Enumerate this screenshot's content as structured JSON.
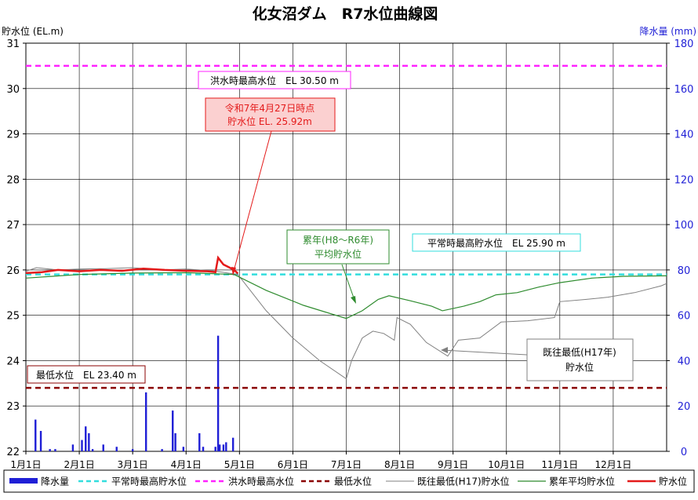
{
  "chart_data": {
    "type": "line",
    "title": "化女沼ダム　R7水位曲線図",
    "y_left_label": "貯水位 (EL.m)",
    "y_right_label": "降水量 (mm)",
    "y_left_range": [
      22,
      31
    ],
    "y_right_range": [
      0,
      180
    ],
    "y_left_ticks": [
      "22",
      "23",
      "24",
      "25",
      "26",
      "27",
      "28",
      "29",
      "30",
      "31"
    ],
    "y_right_ticks": [
      "0",
      "20",
      "40",
      "60",
      "80",
      "100",
      "120",
      "140",
      "160",
      "180"
    ],
    "x_range": [
      1,
      13
    ],
    "x_ticks": [
      "1月1日",
      "2月1日",
      "3月1日",
      "4月1日",
      "5月1日",
      "6月1日",
      "7月1日",
      "8月1日",
      "9月1日",
      "10月1日",
      "11月1日",
      "12月1日"
    ],
    "grid": true,
    "legend_position": "bottom",
    "colors": {
      "precip": "#1f1fd6",
      "normal_max": "#33dede",
      "flood_max": "#ff22ff",
      "min_level": "#8b0000",
      "record_low": "#808080",
      "avg": "#2e8b2e",
      "current": "#e41a1a",
      "right_axis": "#1f1fd6"
    },
    "reference_lines": {
      "flood_max": 30.5,
      "normal_max": 25.9,
      "min_level": 23.4
    },
    "annotations": {
      "flood_max": "洪水時最高水位　EL 30.50 m",
      "normal_max": "平常時最高貯水位　EL 25.90 m",
      "min_level": "最低水位　EL 23.40 m",
      "current_line1": "令和7年4月27日時点",
      "current_line2": "貯水位 EL. 25.92m",
      "avg_line1": "累年(H8～R6年)",
      "avg_line2": "平均貯水位",
      "low_line1": "既往最低(H17年)",
      "low_line2": "貯水位"
    },
    "legend": [
      {
        "label": "降水量",
        "key": "precip"
      },
      {
        "label": "平常時最高貯水位",
        "key": "normal_max"
      },
      {
        "label": "洪水時最高水位",
        "key": "flood_max"
      },
      {
        "label": "最低水位",
        "key": "min_level"
      },
      {
        "label": "既往最低(H17)貯水位",
        "key": "record_low"
      },
      {
        "label": "累年平均貯水位",
        "key": "avg"
      },
      {
        "label": "貯水位",
        "key": "current"
      }
    ],
    "series": {
      "current": [
        [
          1.0,
          25.93
        ],
        [
          1.3,
          25.95
        ],
        [
          1.6,
          26.0
        ],
        [
          2.0,
          25.97
        ],
        [
          2.4,
          26.0
        ],
        [
          2.8,
          25.98
        ],
        [
          3.2,
          26.03
        ],
        [
          3.6,
          26.0
        ],
        [
          4.0,
          25.98
        ],
        [
          4.4,
          25.97
        ],
        [
          4.55,
          25.95
        ],
        [
          4.6,
          26.27
        ],
        [
          4.7,
          26.12
        ],
        [
          4.8,
          26.06
        ],
        [
          4.9,
          26.0
        ],
        [
          4.97,
          25.92
        ]
      ],
      "average": [
        [
          1.0,
          25.82
        ],
        [
          1.5,
          25.86
        ],
        [
          2.0,
          25.9
        ],
        [
          3.0,
          25.93
        ],
        [
          4.0,
          25.94
        ],
        [
          4.9,
          25.9
        ],
        [
          5.5,
          25.55
        ],
        [
          6.2,
          25.22
        ],
        [
          7.0,
          24.93
        ],
        [
          7.3,
          25.1
        ],
        [
          7.6,
          25.35
        ],
        [
          7.8,
          25.43
        ],
        [
          8.2,
          25.32
        ],
        [
          8.6,
          25.2
        ],
        [
          8.8,
          25.1
        ],
        [
          9.2,
          25.2
        ],
        [
          9.5,
          25.3
        ],
        [
          9.8,
          25.45
        ],
        [
          10.2,
          25.5
        ],
        [
          10.6,
          25.62
        ],
        [
          11.0,
          25.72
        ],
        [
          11.6,
          25.82
        ],
        [
          12.2,
          25.86
        ],
        [
          13.0,
          25.87
        ]
      ],
      "record_low": [
        [
          1.0,
          25.97
        ],
        [
          1.2,
          26.05
        ],
        [
          1.6,
          26.0
        ],
        [
          2.0,
          26.02
        ],
        [
          2.5,
          26.03
        ],
        [
          3.0,
          26.05
        ],
        [
          3.5,
          26.0
        ],
        [
          4.0,
          26.02
        ],
        [
          4.5,
          25.98
        ],
        [
          4.97,
          25.9
        ],
        [
          5.5,
          25.1
        ],
        [
          6.0,
          24.5
        ],
        [
          6.5,
          24.0
        ],
        [
          7.0,
          23.6
        ],
        [
          7.1,
          24.0
        ],
        [
          7.3,
          24.5
        ],
        [
          7.5,
          24.65
        ],
        [
          7.7,
          24.6
        ],
        [
          7.9,
          24.45
        ],
        [
          7.95,
          24.95
        ],
        [
          8.2,
          24.8
        ],
        [
          8.5,
          24.4
        ],
        [
          8.9,
          24.1
        ],
        [
          9.1,
          24.45
        ],
        [
          9.5,
          24.5
        ],
        [
          9.9,
          24.85
        ],
        [
          10.4,
          24.88
        ],
        [
          10.9,
          24.95
        ],
        [
          11.0,
          25.3
        ],
        [
          11.5,
          25.35
        ],
        [
          11.9,
          25.4
        ],
        [
          12.4,
          25.5
        ],
        [
          12.9,
          25.65
        ],
        [
          13.0,
          25.7
        ]
      ],
      "precip": [
        [
          1.18,
          14
        ],
        [
          1.28,
          9
        ],
        [
          1.45,
          1
        ],
        [
          1.55,
          1
        ],
        [
          1.88,
          3
        ],
        [
          2.05,
          5
        ],
        [
          2.12,
          11
        ],
        [
          2.18,
          8
        ],
        [
          2.25,
          1
        ],
        [
          2.45,
          3
        ],
        [
          2.7,
          2
        ],
        [
          3.0,
          1
        ],
        [
          3.25,
          26
        ],
        [
          3.55,
          1
        ],
        [
          3.75,
          18
        ],
        [
          3.8,
          8
        ],
        [
          3.95,
          2
        ],
        [
          4.25,
          8
        ],
        [
          4.32,
          2
        ],
        [
          4.55,
          2
        ],
        [
          4.6,
          51
        ],
        [
          4.63,
          3
        ],
        [
          4.7,
          3
        ],
        [
          4.75,
          4
        ],
        [
          4.88,
          6
        ]
      ]
    }
  }
}
